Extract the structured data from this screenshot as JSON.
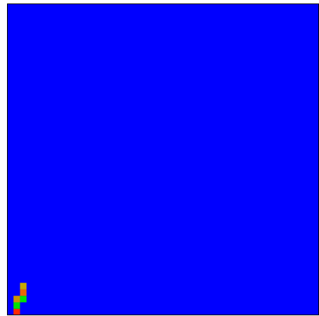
{
  "chart_data": {
    "type": "heatmap",
    "title": "",
    "xlabel": "",
    "ylabel": "",
    "grid": false,
    "colorbar": false,
    "background_color": "#0000ff",
    "palette": {
      "0": "#0000ff",
      "1": "#00e400",
      "2": "#ff2a00",
      "3": "#e86600",
      "4": "#cf9300",
      "5": "#c6a800",
      "6": "#00a8c8",
      "7": "#80ff00"
    },
    "nx": 48,
    "ny": 48,
    "strip_columns": [
      {
        "index": 1,
        "cells": [
          {
            "row": 0,
            "level": 2
          },
          {
            "row": 1,
            "level": 1
          },
          {
            "row": 2,
            "level": 4
          }
        ]
      },
      {
        "index": 2,
        "cells": [
          {
            "row": 2,
            "level": 1
          },
          {
            "row": 3,
            "level": 3
          },
          {
            "row": 4,
            "level": 5
          }
        ]
      }
    ],
    "cells": []
  }
}
